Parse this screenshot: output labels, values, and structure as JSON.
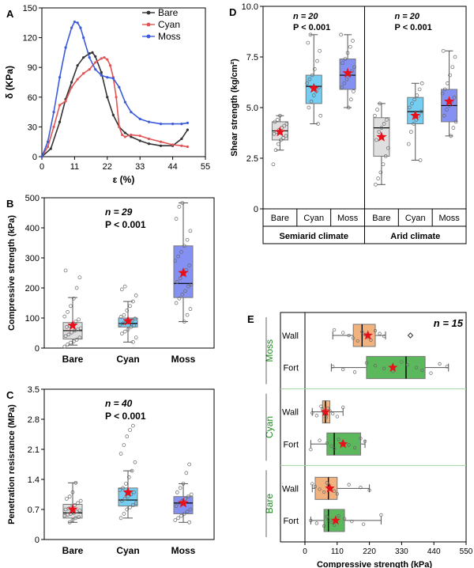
{
  "colors": {
    "bare": "#333333",
    "cyan": "#e05555",
    "moss": "#3b5bdb",
    "bare_box": "#d9d9d9",
    "cyan_box": "#5ec4f0",
    "moss_box": "#6f7cf0",
    "star": "#e8101a",
    "fort_box": "#5cb85c",
    "wall_box": "#f2b27e",
    "group_label": "#1e8a1e",
    "divider": "#9fd99f"
  },
  "chart_data": [
    {
      "panel": "A",
      "type": "line",
      "xlabel": "ε (%)",
      "ylabel": "δ (KPa)",
      "xlim": [
        0,
        55
      ],
      "ylim": [
        0,
        150
      ],
      "xticks": [
        "0",
        "11",
        "22",
        "33",
        "44",
        "55"
      ],
      "yticks": [
        "0",
        "30",
        "60",
        "90",
        "120",
        "150"
      ],
      "legend_position": "top-right",
      "series": [
        {
          "name": "Bare",
          "color_key": "bare",
          "x": [
            0,
            3,
            6,
            8,
            10,
            12,
            14,
            16,
            17,
            18,
            20,
            22,
            24,
            26,
            28,
            30,
            33,
            36,
            40,
            44,
            47,
            49
          ],
          "y": [
            0,
            8,
            35,
            58,
            75,
            92,
            100,
            104,
            105,
            101,
            85,
            60,
            42,
            30,
            24,
            20,
            16,
            13,
            11,
            11,
            18,
            27
          ]
        },
        {
          "name": "Cyan",
          "color_key": "cyan",
          "x": [
            0,
            2,
            4,
            6,
            8,
            10,
            12,
            14,
            16,
            18,
            20,
            21,
            22,
            23,
            24,
            25,
            26,
            27,
            28,
            30,
            33,
            36,
            40,
            44,
            47,
            49
          ],
          "y": [
            0,
            10,
            30,
            52,
            56,
            70,
            78,
            84,
            88,
            95,
            99,
            100,
            98,
            92,
            80,
            60,
            30,
            22,
            20,
            22,
            21,
            18,
            15,
            12,
            11,
            10
          ]
        },
        {
          "name": "Moss",
          "color_key": "moss",
          "x": [
            0,
            2,
            4,
            6,
            8,
            10,
            11,
            12,
            13,
            14,
            16,
            18,
            20,
            22,
            24,
            26,
            28,
            30,
            33,
            36,
            40,
            44,
            47,
            49
          ],
          "y": [
            0,
            15,
            45,
            80,
            110,
            130,
            136,
            135,
            130,
            120,
            100,
            88,
            82,
            80,
            79,
            70,
            55,
            45,
            38,
            35,
            33,
            33,
            33,
            34
          ]
        }
      ]
    },
    {
      "panel": "B",
      "type": "box",
      "ylabel": "Compressive strength (kPa)",
      "ylim": [
        0,
        500
      ],
      "yticks": [
        "0",
        "100",
        "200",
        "300",
        "400",
        "500"
      ],
      "categories": [
        "Bare",
        "Cyan",
        "Moss"
      ],
      "annotation": [
        "n = 29",
        "P < 0.001"
      ],
      "boxes": [
        {
          "category": "Bare",
          "whisker_low": 10,
          "q1": 30,
          "median": 58,
          "q3": 85,
          "whisker_high": 168,
          "mean": 75,
          "color_key": "bare_box",
          "points": [
            5,
            12,
            18,
            22,
            28,
            35,
            40,
            45,
            52,
            58,
            62,
            66,
            70,
            75,
            80,
            88,
            95,
            105,
            120,
            140,
            165,
            200,
            235,
            258
          ]
        },
        {
          "category": "Cyan",
          "whisker_low": 20,
          "q1": 70,
          "median": 82,
          "q3": 100,
          "whisker_high": 155,
          "mean": 90,
          "color_key": "cyan_box",
          "points": [
            20,
            35,
            48,
            55,
            62,
            70,
            75,
            78,
            82,
            85,
            88,
            92,
            98,
            104,
            110,
            125,
            140,
            155,
            175,
            195,
            205
          ]
        },
        {
          "category": "Moss",
          "whisker_low": 88,
          "q1": 168,
          "median": 215,
          "q3": 340,
          "whisker_high": 483,
          "mean": 250,
          "color_key": "moss_box",
          "points": [
            88,
            110,
            130,
            150,
            165,
            178,
            190,
            205,
            212,
            220,
            232,
            245,
            260,
            275,
            290,
            305,
            320,
            340,
            360,
            390,
            430,
            470,
            483
          ]
        }
      ]
    },
    {
      "panel": "C",
      "type": "box",
      "ylabel": "Penetration resisrance (MPa)",
      "ylim": [
        0,
        3.5
      ],
      "yticks": [
        "0",
        "0.7",
        "1.4",
        "2.1",
        "2.8",
        "3.5"
      ],
      "categories": [
        "Bare",
        "Cyan",
        "Moss"
      ],
      "annotation": [
        "n = 40",
        "P < 0.001"
      ],
      "boxes": [
        {
          "category": "Bare",
          "whisker_low": 0.4,
          "q1": 0.5,
          "median": 0.62,
          "q3": 0.82,
          "whisker_high": 1.32,
          "mean": 0.7,
          "color_key": "bare_box",
          "points": [
            0.4,
            0.45,
            0.5,
            0.52,
            0.55,
            0.58,
            0.6,
            0.62,
            0.65,
            0.68,
            0.7,
            0.72,
            0.75,
            0.8,
            0.85,
            0.9,
            0.95,
            1.0,
            1.1,
            1.32
          ]
        },
        {
          "category": "Cyan",
          "whisker_low": 0.5,
          "q1": 0.78,
          "median": 0.92,
          "q3": 1.2,
          "whisker_high": 1.6,
          "mean": 1.1,
          "color_key": "cyan_box",
          "points": [
            0.5,
            0.6,
            0.7,
            0.75,
            0.8,
            0.85,
            0.9,
            0.95,
            1.0,
            1.05,
            1.1,
            1.15,
            1.2,
            1.3,
            1.45,
            1.6,
            1.8,
            2.0,
            2.2,
            2.4,
            2.55,
            2.65
          ]
        },
        {
          "category": "Moss",
          "whisker_low": 0.4,
          "q1": 0.6,
          "median": 0.85,
          "q3": 1.0,
          "whisker_high": 1.3,
          "mean": 0.85,
          "color_key": "moss_box",
          "points": [
            0.4,
            0.45,
            0.5,
            0.55,
            0.6,
            0.65,
            0.7,
            0.78,
            0.85,
            0.9,
            0.95,
            1.0,
            1.05,
            1.1,
            1.2,
            1.3,
            1.55,
            1.75
          ]
        }
      ]
    },
    {
      "panel": "D",
      "type": "box",
      "ylabel": "Shear strength (kg/cm²)",
      "ylim": [
        0,
        10
      ],
      "yticks": [
        "0",
        "2.5",
        "5.0",
        "7.5",
        "10.0"
      ],
      "groups": [
        {
          "label": "Semiarid climate",
          "annotation": [
            "n = 20",
            "P < 0.001"
          ],
          "boxes": [
            {
              "category": "Bare",
              "whisker_low": 2.9,
              "q1": 3.4,
              "median": 3.85,
              "q3": 4.3,
              "whisker_high": 4.6,
              "mean": 3.8,
              "color_key": "bare_box",
              "points": [
                2.2,
                2.9,
                3.2,
                3.4,
                3.5,
                3.6,
                3.7,
                3.8,
                3.9,
                4.0,
                4.1,
                4.2,
                4.3,
                4.4,
                4.6
              ]
            },
            {
              "category": "Cyan",
              "whisker_low": 4.2,
              "q1": 5.2,
              "median": 6.05,
              "q3": 6.6,
              "whisker_high": 8.6,
              "mean": 5.95,
              "color_key": "cyan_box",
              "points": [
                4.2,
                4.6,
                5.0,
                5.3,
                5.6,
                5.8,
                6.0,
                6.2,
                6.4,
                6.6,
                6.9,
                7.3,
                7.8,
                8.2,
                8.6
              ]
            },
            {
              "category": "Moss",
              "whisker_low": 5.0,
              "q1": 5.9,
              "median": 6.6,
              "q3": 7.4,
              "whisker_high": 8.6,
              "mean": 6.7,
              "color_key": "moss_box",
              "points": [
                5.0,
                5.4,
                5.8,
                6.0,
                6.2,
                6.4,
                6.6,
                6.8,
                7.0,
                7.2,
                7.4,
                7.7,
                8.0,
                8.3,
                8.6
              ]
            }
          ]
        },
        {
          "label": "Arid climate",
          "annotation": [
            "n = 20",
            "P < 0.001"
          ],
          "boxes": [
            {
              "category": "Bare",
              "whisker_low": 1.2,
              "q1": 2.6,
              "median": 4.0,
              "q3": 4.5,
              "whisker_high": 5.2,
              "mean": 3.55,
              "color_key": "bare_box",
              "points": [
                1.2,
                1.5,
                1.8,
                2.2,
                2.6,
                3.0,
                3.4,
                3.8,
                4.0,
                4.2,
                4.4,
                4.6,
                4.9,
                5.2
              ]
            },
            {
              "category": "Cyan",
              "whisker_low": 2.4,
              "q1": 4.2,
              "median": 4.8,
              "q3": 5.5,
              "whisker_high": 6.2,
              "mean": 4.6,
              "color_key": "cyan_box",
              "points": [
                2.4,
                3.2,
                3.8,
                4.2,
                4.4,
                4.6,
                4.8,
                5.0,
                5.2,
                5.4,
                5.6,
                5.9,
                6.2
              ]
            },
            {
              "category": "Moss",
              "whisker_low": 3.6,
              "q1": 4.3,
              "median": 5.1,
              "q3": 5.9,
              "whisker_high": 7.8,
              "mean": 5.3,
              "color_key": "moss_box",
              "points": [
                3.6,
                4.0,
                4.3,
                4.6,
                4.9,
                5.1,
                5.3,
                5.5,
                5.7,
                5.9,
                6.2,
                6.6,
                7.0,
                7.5,
                7.8
              ]
            }
          ]
        }
      ],
      "categories": [
        "Bare",
        "Cyan",
        "Moss"
      ]
    },
    {
      "panel": "E",
      "type": "box_horizontal",
      "xlabel": "Compressive strength (kPa)",
      "xlim": [
        0,
        550
      ],
      "xticks": [
        "0",
        "110",
        "220",
        "330",
        "440",
        "550"
      ],
      "annotation": "n = 15",
      "groups": [
        {
          "label": "Moss",
          "rows": [
            {
              "category": "Wall",
              "whisker_low": 95,
              "q1": 165,
              "median": 195,
              "q3": 240,
              "whisker_high": 275,
              "mean": 215,
              "outlier": 360,
              "color_key": "wall_box",
              "points": [
                100,
                130,
                150,
                165,
                180,
                195,
                205,
                215,
                225,
                240,
                255,
                270
              ]
            },
            {
              "category": "Fort",
              "whisker_low": 90,
              "q1": 210,
              "median": 345,
              "q3": 410,
              "whisker_high": 490,
              "mean": 300,
              "color_key": "fort_box",
              "points": [
                95,
                130,
                170,
                210,
                240,
                270,
                300,
                330,
                350,
                380,
                400,
                430,
                460,
                485
              ]
            }
          ]
        },
        {
          "label": "Cyan",
          "rows": [
            {
              "category": "Wall",
              "whisker_low": 25,
              "q1": 60,
              "median": 70,
              "q3": 85,
              "whisker_high": 130,
              "mean": 70,
              "color_key": "wall_box",
              "points": [
                25,
                40,
                55,
                60,
                65,
                70,
                72,
                78,
                85,
                95,
                110,
                130
              ]
            },
            {
              "category": "Fort",
              "whisker_low": 20,
              "q1": 75,
              "median": 100,
              "q3": 190,
              "whisker_high": 205,
              "mean": 130,
              "color_key": "fort_box",
              "points": [
                20,
                50,
                75,
                90,
                100,
                115,
                130,
                150,
                170,
                190,
                205
              ]
            }
          ]
        },
        {
          "label": "Bare",
          "rows": [
            {
              "category": "Wall",
              "whisker_low": 25,
              "q1": 35,
              "median": 80,
              "q3": 110,
              "whisker_high": 220,
              "mean": 85,
              "color_key": "wall_box",
              "points": [
                25,
                35,
                50,
                65,
                75,
                80,
                90,
                100,
                110,
                150,
                190,
                220
              ]
            },
            {
              "category": "Fort",
              "whisker_low": 20,
              "q1": 65,
              "median": 80,
              "q3": 135,
              "whisker_high": 260,
              "mean": 105,
              "color_key": "fort_box",
              "points": [
                20,
                40,
                65,
                75,
                80,
                90,
                100,
                115,
                135,
                160,
                200,
                260
              ]
            }
          ]
        }
      ]
    }
  ],
  "panel_labels": [
    "A",
    "B",
    "C",
    "D",
    "E"
  ]
}
